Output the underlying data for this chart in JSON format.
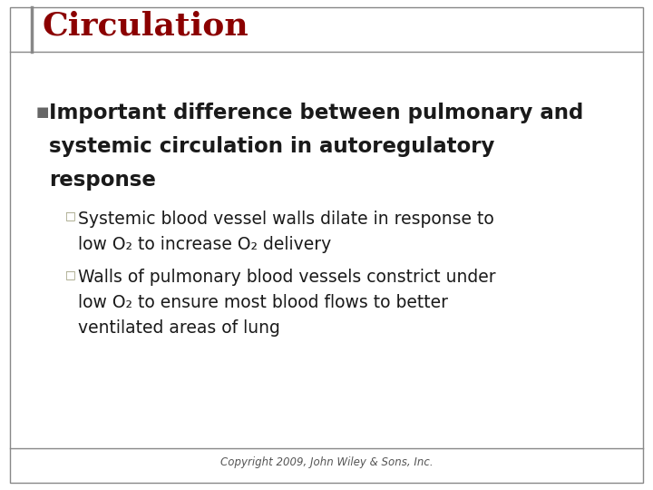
{
  "title": "Circulation",
  "title_color": "#8B0000",
  "title_fontsize": 26,
  "background_color": "#ffffff",
  "border_color": "#888888",
  "bullet_marker": "■",
  "bullet_color": "#666666",
  "bullet_fontsize": 16.5,
  "bullet_text_lines": [
    "Important difference between pulmonary and",
    "systemic circulation in autoregulatory",
    "response"
  ],
  "sub_bullet_marker": "□",
  "sub_bullet_color": "#999977",
  "sub_bullet_fontsize": 13.5,
  "sub_bullets": [
    {
      "lines": [
        "Systemic blood vessel walls dilate in response to",
        "low O₂ to increase O₂ delivery"
      ]
    },
    {
      "lines": [
        "Walls of pulmonary blood vessels constrict under",
        "low O₂ to ensure most blood flows to better",
        "ventilated areas of lung"
      ]
    }
  ],
  "copyright_text": "Copyright 2009, John Wiley & Sons, Inc.",
  "copyright_fontsize": 8.5,
  "copyright_color": "#555555"
}
